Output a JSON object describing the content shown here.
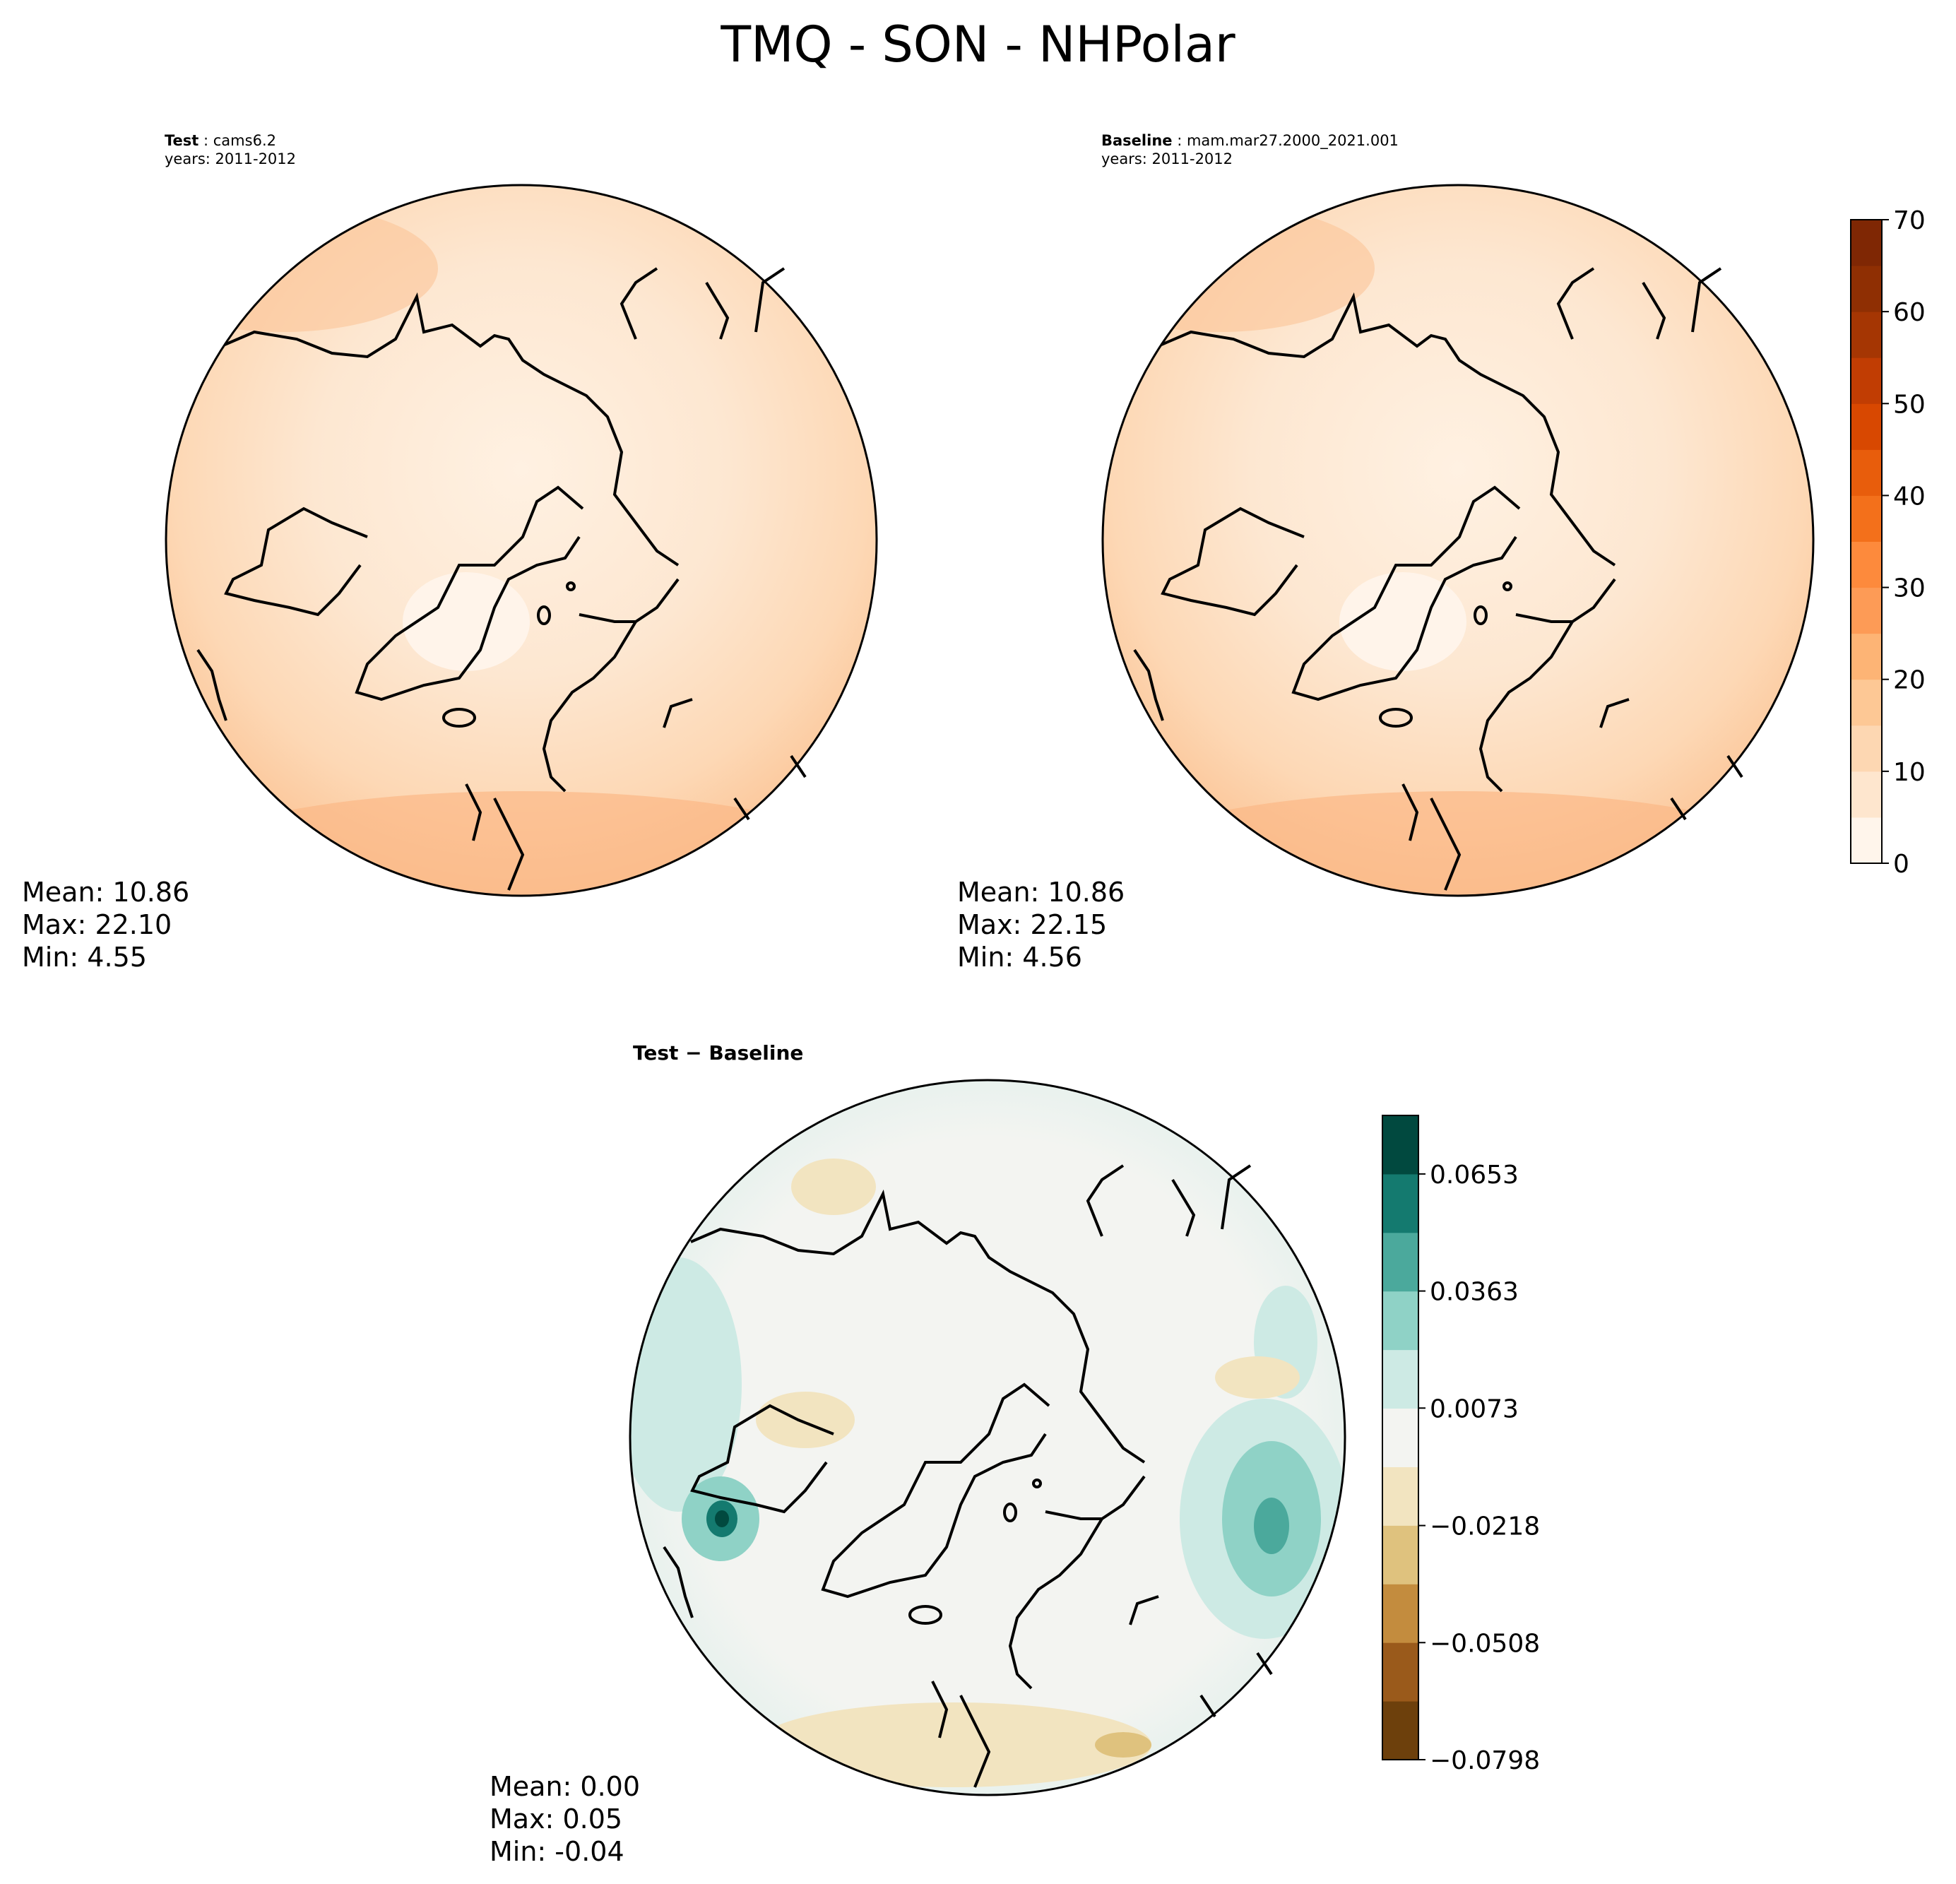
{
  "figure": {
    "title": "TMQ - SON - NHPolar"
  },
  "chart_data": [
    {
      "type": "heatmap",
      "panel": "test",
      "projection": "North Polar Stereographic",
      "label_prefix": "Test",
      "label_case": "cams6.2",
      "label_years": "years: 2011-2012",
      "stats": {
        "mean": "Mean: 10.86",
        "max": "Max: 22.10",
        "min": "Min:  4.55"
      },
      "colormap": "Oranges",
      "value_range": [
        4.55,
        22.1
      ]
    },
    {
      "type": "heatmap",
      "panel": "baseline",
      "projection": "North Polar Stereographic",
      "label_prefix": "Baseline",
      "label_case": "mam.mar27.2000_2021.001",
      "label_years": "years: 2011-2012",
      "stats": {
        "mean": "Mean: 10.86",
        "max": "Max: 22.15",
        "min": "Min:  4.56"
      },
      "colormap": "Oranges",
      "colorbar": {
        "ticks": [
          "0",
          "10",
          "20",
          "30",
          "40",
          "50",
          "60",
          "70"
        ],
        "range": [
          0,
          70
        ],
        "levels": [
          0,
          5,
          10,
          15,
          20,
          25,
          30,
          35,
          40,
          45,
          50,
          55,
          60,
          65,
          70
        ],
        "colors": [
          "#fff5eb",
          "#fee6ce",
          "#fdd7b2",
          "#fdc895",
          "#fdb475",
          "#fd9b56",
          "#fd8a3c",
          "#f3701b",
          "#e85d0c",
          "#d84801",
          "#c13d03",
          "#a53603",
          "#8f2f03",
          "#7f2704"
        ]
      }
    },
    {
      "type": "heatmap",
      "panel": "difference",
      "projection": "North Polar Stereographic",
      "title": "Test − Baseline",
      "stats": {
        "mean": "Mean:  0.00",
        "max": "Max:  0.05",
        "min": "Min: -0.04"
      },
      "colormap": "BrBG",
      "colorbar": {
        "ticks": [
          "0.0653",
          "0.0363",
          "0.0073",
          "−0.0218",
          "−0.0508",
          "−0.0798"
        ],
        "tick_values": [
          0.0653,
          0.0363,
          0.0073,
          -0.0218,
          -0.0508,
          -0.0798
        ],
        "range": [
          -0.0798,
          0.0798
        ],
        "colors": [
          "#6d400c",
          "#9a5a1b",
          "#c38c3e",
          "#dfc27e",
          "#f2e4c0",
          "#f3f4f1",
          "#cdeae4",
          "#8fd2c6",
          "#4ba99c",
          "#147a6f",
          "#01493f"
        ]
      }
    }
  ]
}
